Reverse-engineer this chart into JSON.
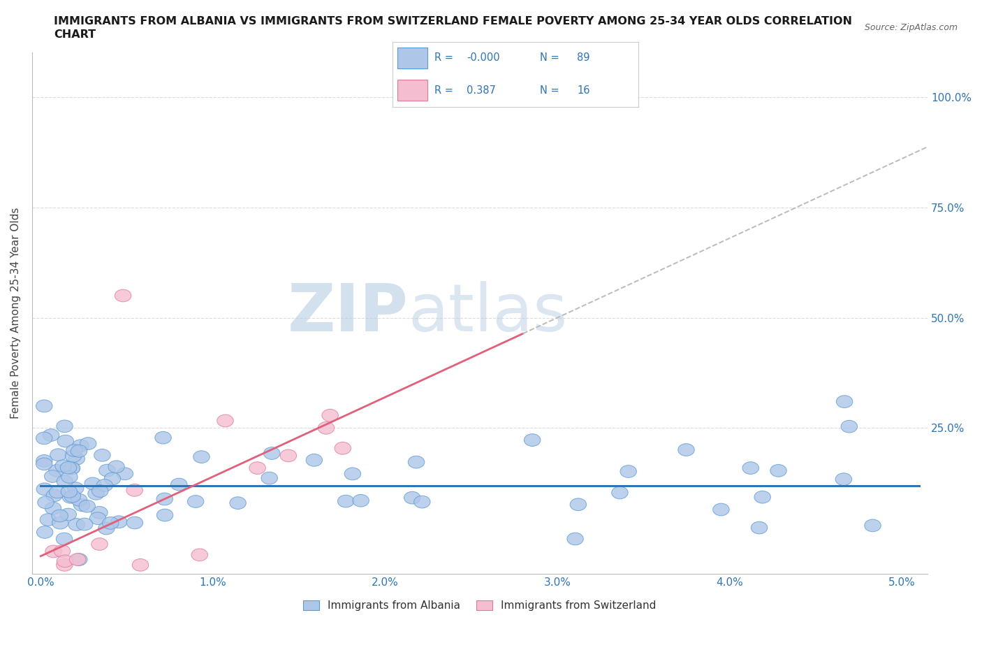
{
  "title_line1": "IMMIGRANTS FROM ALBANIA VS IMMIGRANTS FROM SWITZERLAND FEMALE POVERTY AMONG 25-34 YEAR OLDS CORRELATION",
  "title_line2": "CHART",
  "source": "Source: ZipAtlas.com",
  "ylabel": "Female Poverty Among 25-34 Year Olds",
  "xlim": [
    -0.0005,
    0.0515
  ],
  "ylim": [
    -0.08,
    1.1
  ],
  "xtick_vals": [
    0.0,
    0.01,
    0.02,
    0.03,
    0.04,
    0.05
  ],
  "xtick_labels": [
    "0.0%",
    "1.0%",
    "2.0%",
    "3.0%",
    "4.0%",
    "5.0%"
  ],
  "ytick_vals": [
    0.25,
    0.5,
    0.75,
    1.0
  ],
  "ytick_labels": [
    "25.0%",
    "50.0%",
    "75.0%",
    "100.0%"
  ],
  "albania_color": "#aec6e8",
  "albania_edge_color": "#5b9bd5",
  "switzerland_color": "#f4bdd0",
  "switzerland_edge_color": "#e07a9a",
  "albania_line_color": "#2e75b6",
  "switzerland_line_color": "#e0607a",
  "grid_color": "#cccccc",
  "background_color": "#ffffff",
  "title_color": "#1a1a1a",
  "tick_label_color": "#2e75b6",
  "legend_text_color": "#2e75b6",
  "watermark_color": "#c8d8ea",
  "r_albania_text": "-0.000",
  "n_albania_text": "89",
  "r_switzerland_text": "0.387",
  "n_switzerland_text": "16"
}
